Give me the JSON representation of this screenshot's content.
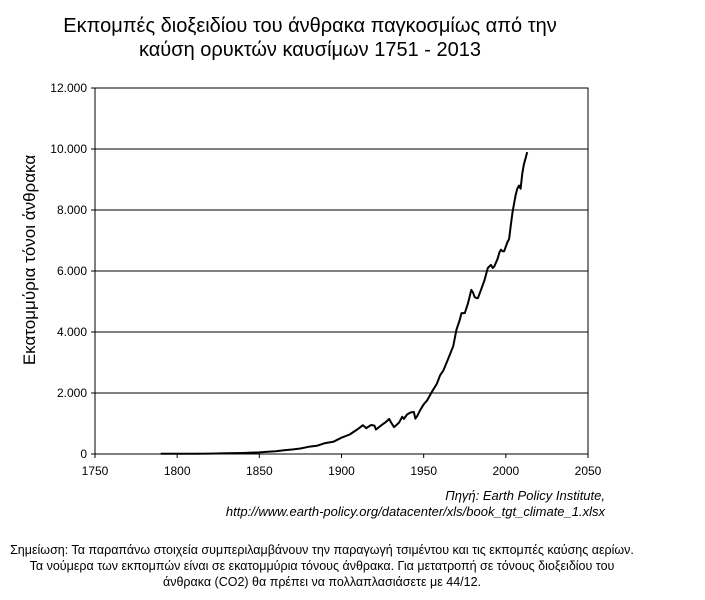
{
  "title_line1": "Εκπομπές διοξειδίου του άνθρακα παγκοσμίως από την",
  "title_line2": "καύση ορυκτών καυσίμων 1751 - 2013",
  "source_line1": "Πηγή: Earth Policy Institute,",
  "source_line2": "http://www.earth-policy.org/datacenter/xls/book_tgt_climate_1.xlsx",
  "note": "Σημείωση: Τα παραπάνω στοιχεία συμπεριλαμβάνουν την παραγωγή τσιμέντου και τις εκπομπές καύσης αερίων. Τα νούμερα των εκπομπών είναι σε εκατομμύρια τόνους άνθρακα. Για μετατροπή σε τόνους διοξειδίου του άνθρακα (CO2) θα πρέπει να πολλαπλασιάσετε με 44/12.",
  "chart_data": {
    "type": "line",
    "title": "Εκπομπές διοξειδίου του άνθρακα παγκοσμίως από την καύση ορυκτών καυσίμων 1751 - 2013",
    "xlabel": "",
    "ylabel": "Εκατομμύρια τόνοι άνθρακα",
    "xlim": [
      1750,
      2050
    ],
    "ylim": [
      0,
      12000
    ],
    "x_ticks": [
      1750,
      1800,
      1850,
      1900,
      1950,
      2000,
      2050
    ],
    "x_tick_labels": [
      "1750",
      "1800",
      "1850",
      "1900",
      "1950",
      "2000",
      "2050"
    ],
    "y_ticks": [
      0,
      2000,
      4000,
      6000,
      8000,
      10000,
      12000
    ],
    "y_tick_labels": [
      "0",
      "2.000",
      "4.000",
      "6.000",
      "8.000",
      "10.000",
      "12.000"
    ],
    "grid": "horizontal",
    "legend": "none",
    "line_color": "#000000",
    "series": [
      {
        "x": [
          1790,
          1800,
          1810,
          1820,
          1830,
          1840,
          1850,
          1855,
          1860,
          1865,
          1870,
          1875,
          1880,
          1885,
          1890,
          1895,
          1900,
          1905,
          1910,
          1913,
          1915,
          1918,
          1920,
          1921,
          1925,
          1927,
          1929,
          1930,
          1932,
          1935,
          1937,
          1938,
          1940,
          1942,
          1944,
          1945,
          1946,
          1948,
          1950,
          1952,
          1955,
          1958,
          1960,
          1962,
          1965,
          1968,
          1970,
          1972,
          1973,
          1975,
          1977,
          1979,
          1980,
          1981,
          1982,
          1983,
          1985,
          1987,
          1989,
          1990,
          1991,
          1992,
          1993,
          1995,
          1996,
          1997,
          1998,
          1999,
          2000,
          2001,
          2002,
          2003,
          2004,
          2005,
          2006,
          2007,
          2008,
          2009,
          2010,
          2011,
          2012,
          2013
        ],
        "y": [
          5,
          8,
          10,
          14,
          24,
          33,
          54,
          75,
          91,
          120,
          147,
          180,
          236,
          270,
          356,
          400,
          534,
          640,
          819,
          943,
          850,
          950,
          932,
          803,
          975,
          1050,
          1150,
          1050,
          880,
          1030,
          1220,
          1150,
          1300,
          1360,
          1380,
          1160,
          1240,
          1450,
          1630,
          1750,
          2040,
          2300,
          2580,
          2740,
          3130,
          3530,
          4080,
          4400,
          4620,
          4620,
          4940,
          5380,
          5300,
          5150,
          5110,
          5110,
          5400,
          5700,
          6100,
          6150,
          6200,
          6100,
          6150,
          6400,
          6600,
          6700,
          6650,
          6650,
          6800,
          6950,
          7050,
          7500,
          7900,
          8200,
          8500,
          8700,
          8800,
          8700,
          9200,
          9500,
          9700,
          9900
        ]
      }
    ]
  }
}
